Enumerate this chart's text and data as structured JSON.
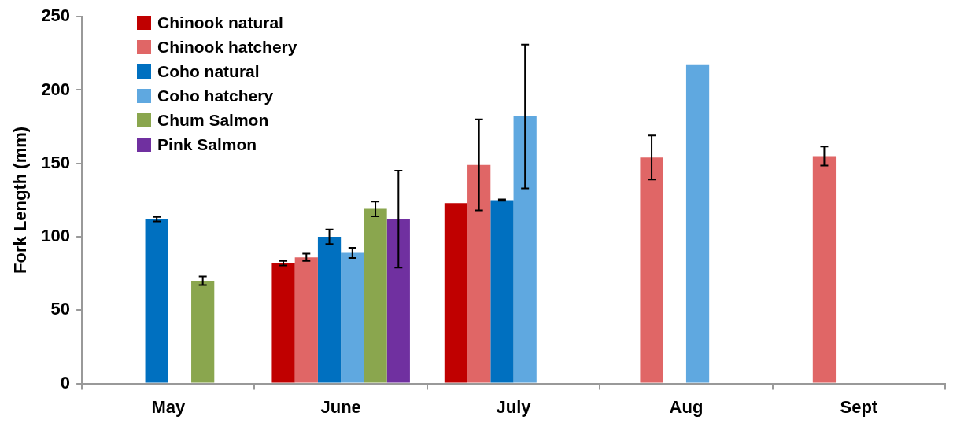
{
  "chart_data": {
    "type": "bar",
    "ylabel": "Fork Length (mm)",
    "categories": [
      "May",
      "June",
      "July",
      "Aug",
      "Sept"
    ],
    "ylim": [
      0,
      250
    ],
    "yticks": [
      0,
      50,
      100,
      150,
      200,
      250
    ],
    "grid": false,
    "legend": "top left",
    "series": [
      {
        "name": "Chinook natural",
        "color": "#c00000",
        "values": [
          null,
          82,
          123,
          null,
          null
        ],
        "errors": [
          null,
          1.5,
          null,
          null,
          null
        ]
      },
      {
        "name": "Chinook hatchery",
        "color": "#e06666",
        "values": [
          null,
          86,
          149,
          154,
          155
        ],
        "errors": [
          null,
          2.5,
          31,
          15,
          6.5
        ]
      },
      {
        "name": "Coho natural",
        "color": "#0070c0",
        "values": [
          112,
          100,
          125,
          null,
          null
        ],
        "errors": [
          1.5,
          5,
          0.5,
          null,
          null
        ]
      },
      {
        "name": "Coho hatchery",
        "color": "#5fa8e0",
        "values": [
          null,
          89,
          182,
          217,
          null
        ],
        "errors": [
          null,
          3.5,
          49,
          null,
          null
        ]
      },
      {
        "name": "Chum Salmon",
        "color": "#8aa64e",
        "values": [
          70,
          119,
          null,
          null,
          null
        ],
        "errors": [
          3,
          5,
          null,
          null,
          null
        ]
      },
      {
        "name": "Pink Salmon",
        "color": "#7030a0",
        "values": [
          null,
          112,
          null,
          null,
          null
        ],
        "errors": [
          null,
          33,
          null,
          null,
          null
        ]
      }
    ]
  }
}
